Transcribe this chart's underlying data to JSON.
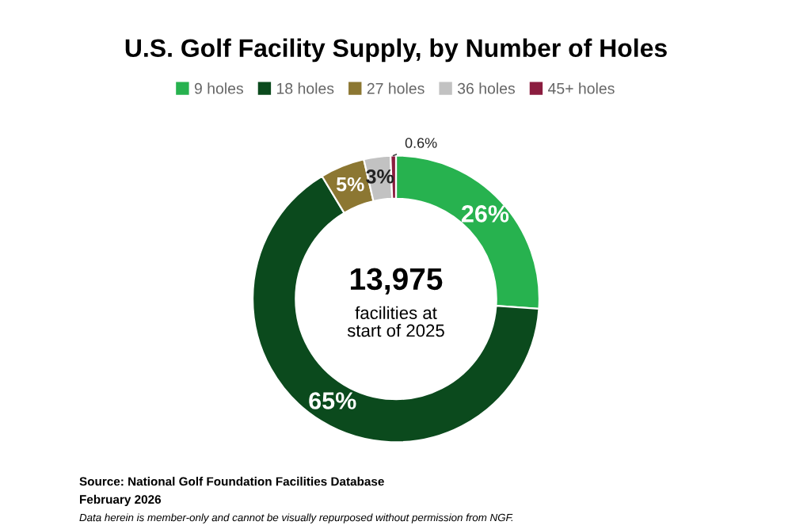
{
  "chart_data": {
    "type": "donut",
    "title": "U.S. Golf Facility Supply, by Number of Holes",
    "categories": [
      "9 holes",
      "18 holes",
      "27 holes",
      "36 holes",
      "45+ holes"
    ],
    "values": [
      26,
      65,
      5,
      3,
      0.6
    ],
    "value_labels": [
      "26%",
      "65%",
      "5%",
      "3%",
      "0.6%"
    ],
    "colors": [
      "#27b24f",
      "#0b4a1d",
      "#8c7732",
      "#c2c2c2",
      "#8b1d3f"
    ],
    "legend": "top",
    "annotations": [
      "13,975",
      "facilities at\nstart of 2025",
      "Source: National Golf Foundation Facilities Database",
      "February 2026",
      "Data herein is member-only and cannot be visually repurposed without permission from NGF."
    ]
  }
}
